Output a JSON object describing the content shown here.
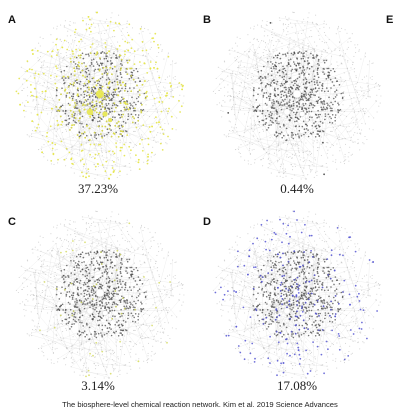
{
  "panels": [
    {
      "letter": "A",
      "percentage": "37.23%",
      "highlight_color": "#e6e64a",
      "highlight_density": 0.38
    },
    {
      "letter": "B",
      "percentage": "0.44%",
      "highlight_color": "#3a3a3a",
      "highlight_density": 0.006
    },
    {
      "letter": "C",
      "percentage": "3.14%",
      "highlight_color": "#d9df6a",
      "highlight_density": 0.035
    },
    {
      "letter": "D",
      "percentage": "17.08%",
      "highlight_color": "#5a5ad6",
      "highlight_density": 0.17
    }
  ],
  "extra_label": "E",
  "caption": "The biosphere-level chemical reaction network. Kim et al. 2019 Science Advances",
  "base_network_color": "#9a9a9a"
}
